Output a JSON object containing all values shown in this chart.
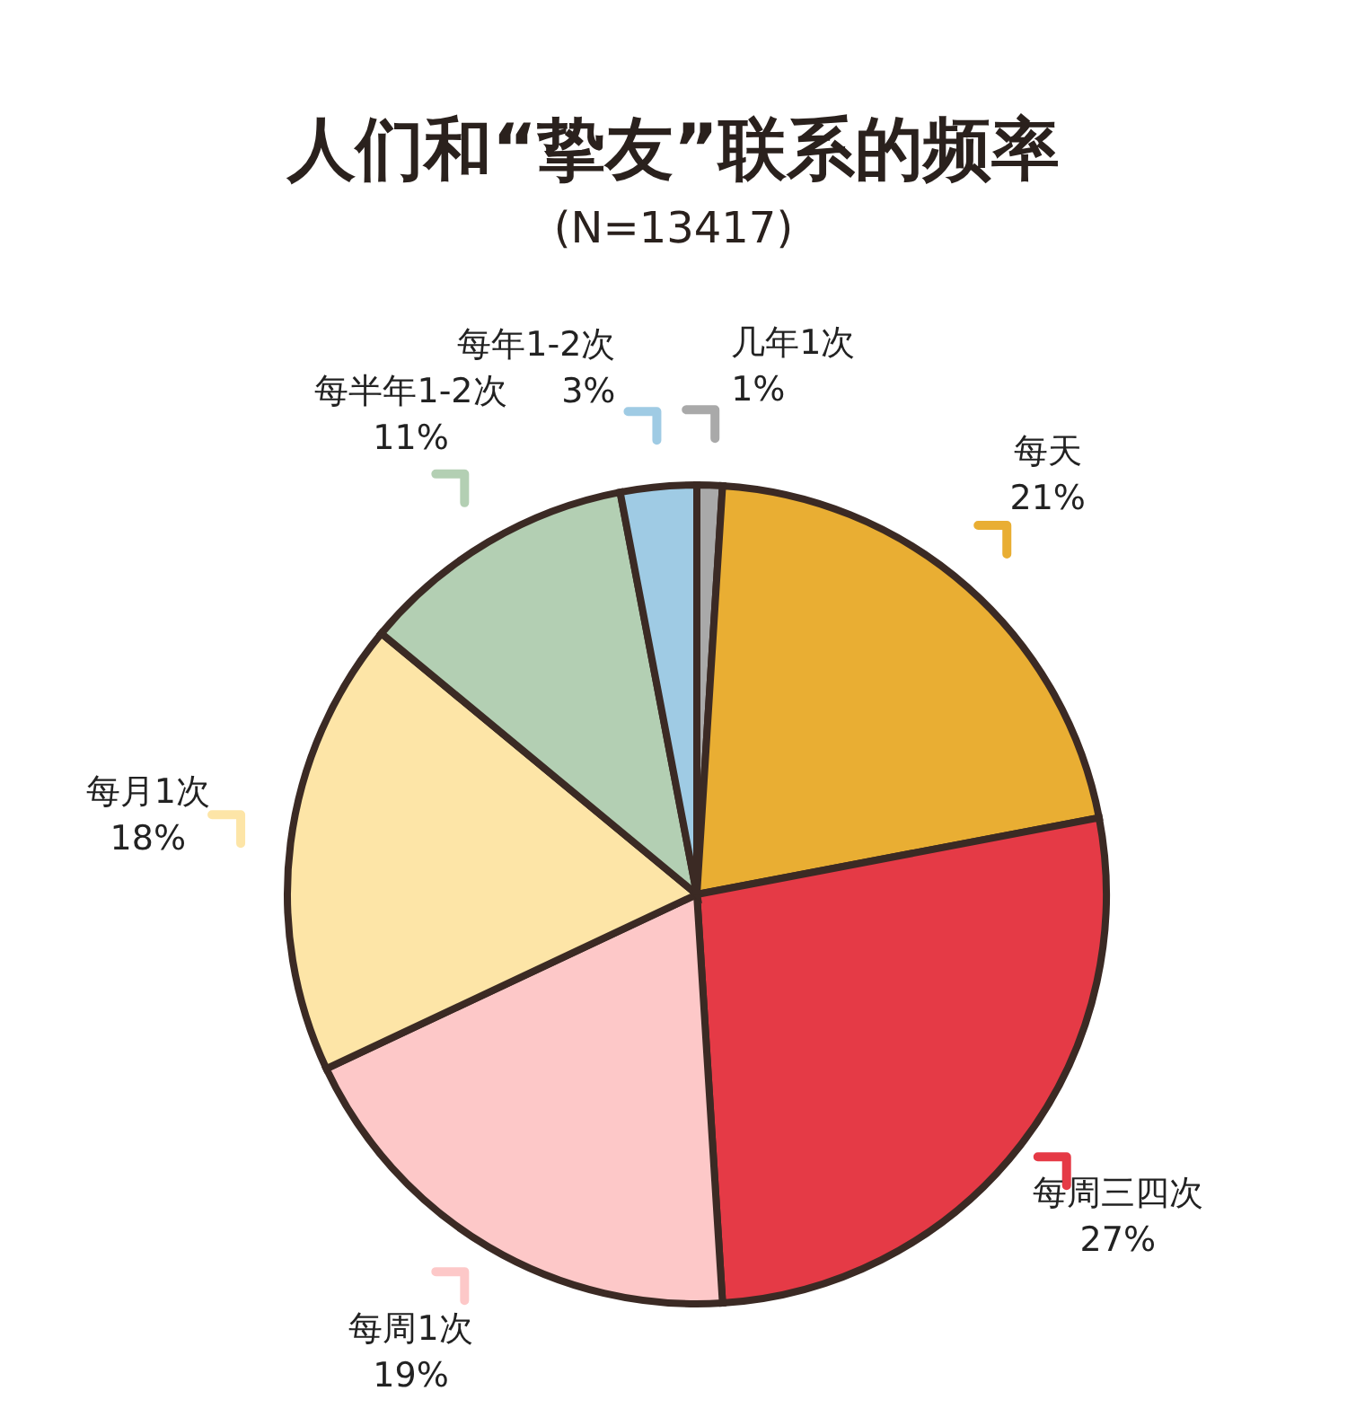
{
  "chart_data": {
    "type": "pie",
    "title": "人们和“挚友”联系的频率",
    "subtitle": "(N=13417)",
    "categories": [
      "几年1次",
      "每天",
      "每周三四次",
      "每周1次",
      "每月1次",
      "每半年1-2次",
      "每年1-2次"
    ],
    "values": [
      1,
      21,
      27,
      19,
      18,
      11,
      3
    ],
    "value_labels": [
      "1%",
      "21%",
      "27%",
      "19%",
      "18%",
      "11%",
      "3%"
    ],
    "colors": [
      "#a9a9a9",
      "#e9ae33",
      "#e53a46",
      "#fdc8c8",
      "#fde5a7",
      "#b3cfb3",
      "#9fcbe4"
    ]
  }
}
